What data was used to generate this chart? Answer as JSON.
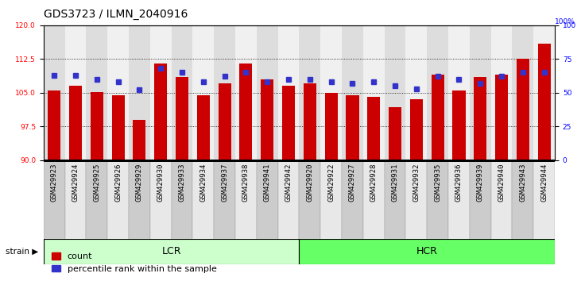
{
  "title": "GDS3723 / ILMN_2040916",
  "samples": [
    "GSM429923",
    "GSM429924",
    "GSM429925",
    "GSM429926",
    "GSM429929",
    "GSM429930",
    "GSM429933",
    "GSM429934",
    "GSM429937",
    "GSM429938",
    "GSM429941",
    "GSM429942",
    "GSM429920",
    "GSM429922",
    "GSM429927",
    "GSM429928",
    "GSM429931",
    "GSM429932",
    "GSM429935",
    "GSM429936",
    "GSM429939",
    "GSM429940",
    "GSM429943",
    "GSM429944"
  ],
  "counts": [
    105.5,
    106.5,
    105.2,
    104.5,
    99.0,
    111.5,
    108.5,
    104.5,
    107.0,
    111.5,
    108.0,
    106.5,
    107.0,
    105.0,
    104.5,
    104.0,
    101.8,
    103.5,
    109.0,
    105.5,
    108.5,
    109.0,
    112.5,
    116.0
  ],
  "percentile_ranks": [
    63,
    63,
    60,
    58,
    52,
    68,
    65,
    58,
    62,
    65,
    58,
    60,
    60,
    58,
    57,
    58,
    55,
    53,
    62,
    60,
    57,
    62,
    65,
    65
  ],
  "lcr_count": 12,
  "hcr_count": 12,
  "ylim_left": [
    90,
    120
  ],
  "yticks_left": [
    90,
    97.5,
    105,
    112.5,
    120
  ],
  "ylim_right": [
    0,
    100
  ],
  "yticks_right": [
    0,
    25,
    50,
    75,
    100
  ],
  "bar_color": "#CC0000",
  "dot_color": "#3333CC",
  "lcr_color": "#CCFFCC",
  "hcr_color": "#66FF66",
  "background_color": "white",
  "title_fontsize": 10,
  "tick_fontsize": 6.5,
  "legend_fontsize": 8,
  "group_fontsize": 9,
  "strain_label": "strain",
  "lcr_label": "LCR",
  "hcr_label": "HCR",
  "legend_count": "count",
  "legend_pct": "percentile rank within the sample",
  "right_axis_label": "100%"
}
